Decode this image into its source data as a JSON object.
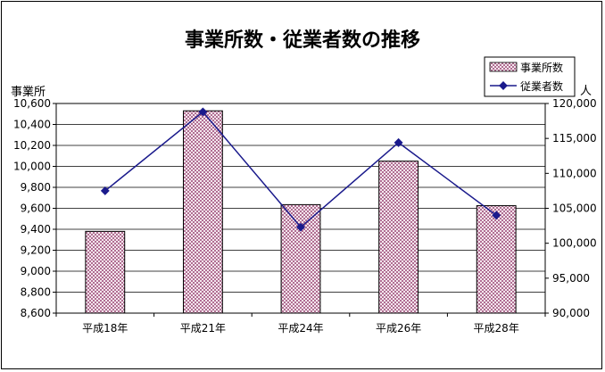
{
  "chart_data": {
    "type": "bar+line",
    "title": "事業所数・従業者数の推移",
    "categories": [
      "平成18年",
      "平成21年",
      "平成24年",
      "平成26年",
      "平成28年"
    ],
    "series": [
      {
        "name": "事業所数",
        "type": "bar",
        "axis": "left",
        "values": [
          9380,
          10530,
          9635,
          10050,
          9625
        ],
        "color": "#c08aa6",
        "pattern": "checker"
      },
      {
        "name": "従業者数",
        "type": "line",
        "axis": "right",
        "values": [
          107500,
          118800,
          102300,
          114400,
          104000
        ],
        "color": "#1a1a8c",
        "marker": "diamond"
      }
    ],
    "y_left": {
      "label": "事業所",
      "range": [
        8600,
        10600
      ],
      "ticks": [
        "8,600",
        "8,800",
        "9,000",
        "9,200",
        "9,400",
        "9,600",
        "9,800",
        "10,000",
        "10,200",
        "10,400",
        "10,600"
      ]
    },
    "y_right": {
      "label": "人",
      "range": [
        90000,
        120000
      ],
      "ticks": [
        "90,000",
        "95,000",
        "100,000",
        "105,000",
        "110,000",
        "115,000",
        "120,000"
      ]
    },
    "grid": true,
    "legend": "top-right"
  }
}
